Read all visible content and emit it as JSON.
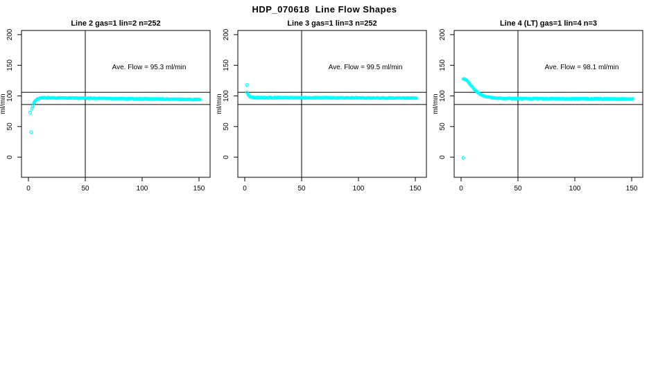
{
  "title": "HDP_070618  Line Flow Shapes",
  "chart_data": {
    "type": "scatter",
    "title": "HDP_070618  Line Flow Shapes",
    "marker": "open-circle",
    "point_color": "#00FFFF",
    "axis_color": "#000000",
    "background": "#FFFFFF",
    "xlim": [
      -6,
      157
    ],
    "ylim": [
      -33,
      207
    ],
    "xticks": [
      0,
      50,
      100,
      150
    ],
    "yticks": [
      0,
      50,
      100,
      150,
      200
    ],
    "grid": false,
    "legend": "none",
    "vline_x": 50,
    "ref_lines_y": [
      106,
      86
    ],
    "panels": [
      {
        "title": "Line 2 gas=1 lin=2 n=252",
        "annotation": "Ave. Flow =  95.3  ml/min",
        "ave_flow_ml_min": 95.3,
        "n": 252,
        "ylabel": "ml/min",
        "profile": [
          [
            3.2,
            80
          ],
          [
            4,
            85
          ],
          [
            5,
            89
          ],
          [
            6,
            92
          ],
          [
            7,
            94
          ],
          [
            8,
            95.5
          ],
          [
            10,
            96.5
          ],
          [
            13,
            97
          ],
          [
            20,
            97
          ],
          [
            40,
            96.5
          ],
          [
            70,
            96
          ],
          [
            100,
            95.3
          ],
          [
            130,
            94.6
          ],
          [
            151,
            94.2
          ]
        ],
        "outliers": [
          [
            1.5,
            73
          ],
          [
            2.5,
            41
          ]
        ]
      },
      {
        "title": "Line 3 gas=1 lin=3 n=252",
        "annotation": "Ave. Flow =  99.5  ml/min",
        "ave_flow_ml_min": 99.5,
        "n": 252,
        "ylabel": "ml/min",
        "profile": [
          [
            2,
            106
          ],
          [
            3,
            101.5
          ],
          [
            4,
            99.5
          ],
          [
            5,
            98.5
          ],
          [
            7,
            97.8
          ],
          [
            10,
            97.4
          ],
          [
            20,
            97.2
          ],
          [
            60,
            97
          ],
          [
            100,
            96.8
          ],
          [
            151,
            96.6
          ]
        ],
        "outliers": [
          [
            2,
            118
          ]
        ]
      },
      {
        "title": "Line 4 (LT) gas=1 lin=4 n=3",
        "annotation": "Ave. Flow =  98.1  ml/min",
        "ave_flow_ml_min": 98.1,
        "n": 3,
        "ylabel": "ml/min",
        "profile": [
          [
            2,
            128
          ],
          [
            3,
            127.5
          ],
          [
            5,
            125
          ],
          [
            7,
            121
          ],
          [
            9,
            116.5
          ],
          [
            11,
            112
          ],
          [
            13,
            108
          ],
          [
            15,
            105
          ],
          [
            17,
            102.5
          ],
          [
            19,
            100.5
          ],
          [
            22,
            98.8
          ],
          [
            25,
            97.6
          ],
          [
            28,
            96.9
          ],
          [
            32,
            96.4
          ],
          [
            40,
            96
          ],
          [
            60,
            95.8
          ],
          [
            90,
            95.5
          ],
          [
            120,
            95.2
          ],
          [
            151,
            95
          ]
        ],
        "outliers": [
          [
            2,
            -1
          ]
        ]
      }
    ]
  }
}
